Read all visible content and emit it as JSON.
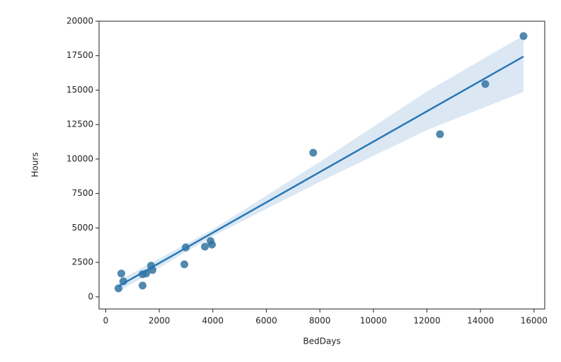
{
  "chart_data": {
    "type": "scatter",
    "x_label": "BedDays",
    "y_label": "Hours",
    "x": [
      476,
      582,
      661,
      1376,
      1376,
      1508,
      1693,
      1746,
      2937,
      2989,
      3704,
      3915,
      3968,
      7751,
      12487,
      14180,
      15608
    ],
    "values": [
      615,
      1690,
      1130,
      1640,
      820,
      1690,
      2260,
      1950,
      2360,
      3590,
      3640,
      4050,
      3790,
      10460,
      11800,
      15440,
      18920
    ],
    "color": "#3274a1",
    "regression": {
      "color": "#2a77b4",
      "x": [
        476,
        15608
      ],
      "values": [
        770,
        17440
      ]
    },
    "ci": {
      "color": "#cfe0f0",
      "x": [
        476,
        4000,
        8000,
        12000,
        15608
      ],
      "upper": [
        1170,
        4900,
        9800,
        14900,
        18970
      ],
      "lower": [
        370,
        4400,
        8350,
        12100,
        14870
      ]
    },
    "xlim": [
      -250,
      16400
    ],
    "ylim": [
      -880,
      20000
    ],
    "xticks": [
      0,
      2000,
      4000,
      6000,
      8000,
      10000,
      12000,
      14000,
      16000
    ],
    "yticks": [
      0,
      2500,
      5000,
      7500,
      10000,
      12500,
      15000,
      17500,
      20000
    ]
  }
}
